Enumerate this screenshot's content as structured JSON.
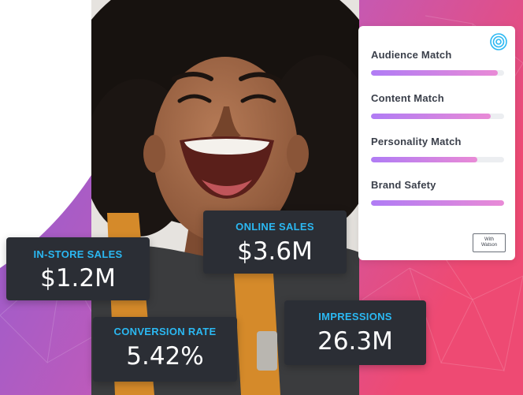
{
  "colors": {
    "card_bg": "#2b2e35",
    "stat_label": "#2bb8f2",
    "stat_value": "#ffffff",
    "bar_gradient_start": "#b07cf5",
    "bar_gradient_end": "#e98ad6",
    "backdrop_purple": "#8a5fd6",
    "backdrop_pink": "#ee4a73"
  },
  "brand_icon": "concentric-circles-icon",
  "match_card": {
    "metrics": [
      {
        "label": "Audience Match",
        "level": 0.95
      },
      {
        "label": "Content Match",
        "level": 0.9
      },
      {
        "label": "Personality Match",
        "level": 0.8
      },
      {
        "label": "Brand Safety",
        "level": 1.0
      }
    ],
    "badge": "With\nWatson"
  },
  "stats": {
    "in_store": {
      "label": "IN-STORE SALES",
      "value": "$1.2M"
    },
    "online": {
      "label": "ONLINE SALES",
      "value": "$3.6M"
    },
    "conversion": {
      "label": "CONVERSION RATE",
      "value": "5.42%"
    },
    "impressions": {
      "label": "IMPRESSIONS",
      "value": "26.3M"
    }
  }
}
